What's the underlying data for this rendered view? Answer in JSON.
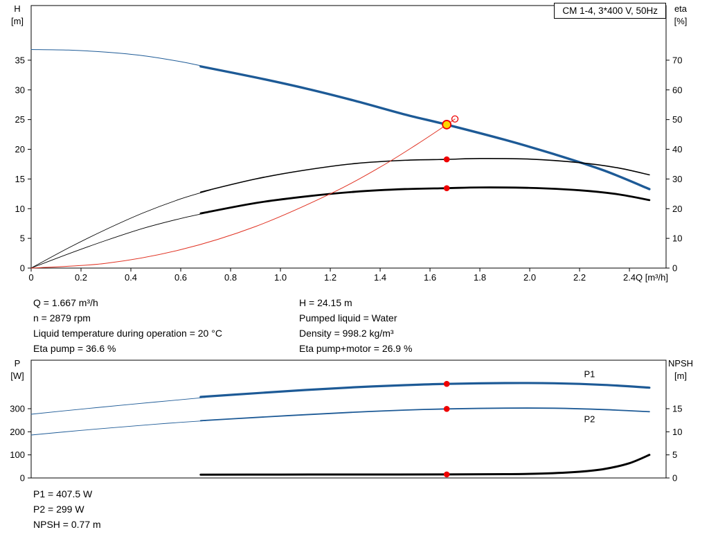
{
  "title_box": {
    "label": "CM 1-4, 3*400 V, 50Hz"
  },
  "info_top": {
    "left": [
      "Q = 1.667 m³/h",
      "n = 2879 rpm",
      "Liquid temperature during operation = 20 °C",
      "Eta pump = 36.6 %"
    ],
    "right": [
      "H = 24.15 m",
      "Pumped liquid = Water",
      "Density = 998.2 kg/m³",
      "Eta pump+motor = 26.9 %"
    ]
  },
  "info_bottom": [
    "P1 = 407.5 W",
    "P2 = 299 W",
    "NPSH = 0.77 m"
  ],
  "colors": {
    "curve_blue": "#1d5a96",
    "curve_black": "#000000",
    "marker_red": "#ee0000",
    "duty_yellow": "#ffd800",
    "frame": "#000000"
  },
  "chart_data": [
    {
      "type": "line",
      "name": "pump-performance-chart",
      "title": "CM 1-4, 3*400 V, 50Hz",
      "grid": false,
      "x_axis": {
        "label": "Q [m³/h]",
        "min": 0,
        "max": 2.547,
        "show_labels": true,
        "ticks": [
          0,
          0.2,
          0.4,
          0.6,
          0.8,
          1.0,
          1.2,
          1.4,
          1.6,
          1.8,
          2.0,
          2.2,
          2.4
        ],
        "tick_labels": [
          "0",
          "0.2",
          "0.4",
          "0.6",
          "0.8",
          "1.0",
          "1.2",
          "1.4",
          "1.6",
          "1.8",
          "2.0",
          "2.2",
          "2.4"
        ]
      },
      "y_left": {
        "label": [
          "H",
          "[m]"
        ],
        "min": 0,
        "max": 44.2,
        "ticks": [
          0,
          5,
          10,
          15,
          20,
          25,
          30,
          35
        ],
        "tick_labels": [
          "0",
          "5",
          "10",
          "15",
          "20",
          "25",
          "30",
          "35"
        ]
      },
      "y_right": {
        "label": [
          "eta",
          "[%]"
        ],
        "min": 0,
        "max": 88.4,
        "ticks": [
          0,
          10,
          20,
          30,
          40,
          50,
          60,
          70
        ],
        "tick_labels": [
          "0",
          "10",
          "20",
          "30",
          "40",
          "50",
          "60",
          "70"
        ]
      },
      "series": [
        {
          "name": "head-curve-lead",
          "axis": "left",
          "color": "#1d5a96",
          "width": 1,
          "points": [
            [
              0,
              36.8
            ],
            [
              0.15,
              36.7
            ],
            [
              0.3,
              36.35
            ],
            [
              0.45,
              35.75
            ],
            [
              0.6,
              34.75
            ],
            [
              0.72,
              33.7
            ]
          ]
        },
        {
          "name": "head-curve",
          "axis": "left",
          "color": "#1d5a96",
          "width": 3.4,
          "points": [
            [
              0.68,
              33.95
            ],
            [
              0.9,
              32.1
            ],
            [
              1.1,
              30.25
            ],
            [
              1.3,
              28.15
            ],
            [
              1.5,
              25.85
            ],
            [
              1.667,
              24.15
            ],
            [
              1.9,
              21.6
            ],
            [
              2.1,
              19.15
            ],
            [
              2.3,
              16.4
            ],
            [
              2.48,
              13.3
            ]
          ]
        },
        {
          "name": "eta-pump-curve-lead",
          "axis": "right",
          "color": "#000000",
          "width": 0.9,
          "points": [
            [
              0,
              0
            ],
            [
              0.15,
              6.8
            ],
            [
              0.3,
              13.0
            ],
            [
              0.45,
              18.6
            ],
            [
              0.6,
              23.3
            ],
            [
              0.72,
              26.3
            ]
          ]
        },
        {
          "name": "eta-pump-curve",
          "axis": "right",
          "color": "#000000",
          "width": 1.6,
          "points": [
            [
              0.68,
              25.6
            ],
            [
              0.9,
              30.0
            ],
            [
              1.1,
              33.0
            ],
            [
              1.3,
              35.2
            ],
            [
              1.5,
              36.3
            ],
            [
              1.667,
              36.6
            ],
            [
              1.8,
              36.9
            ],
            [
              2.0,
              36.7
            ],
            [
              2.2,
              35.5
            ],
            [
              2.35,
              33.8
            ],
            [
              2.48,
              31.4
            ]
          ]
        },
        {
          "name": "eta-pump-motor-curve-lead",
          "axis": "right",
          "color": "#000000",
          "width": 0.9,
          "points": [
            [
              0,
              0
            ],
            [
              0.15,
              4.8
            ],
            [
              0.3,
              9.3
            ],
            [
              0.45,
              13.4
            ],
            [
              0.6,
              16.7
            ],
            [
              0.72,
              18.9
            ]
          ]
        },
        {
          "name": "eta-pump-motor-curve",
          "axis": "right",
          "color": "#000000",
          "width": 2.8,
          "points": [
            [
              0.68,
              18.4
            ],
            [
              0.9,
              21.9
            ],
            [
              1.1,
              24.1
            ],
            [
              1.3,
              25.7
            ],
            [
              1.5,
              26.6
            ],
            [
              1.667,
              26.9
            ],
            [
              1.8,
              27.15
            ],
            [
              2.0,
              27.0
            ],
            [
              2.2,
              26.2
            ],
            [
              2.35,
              24.9
            ],
            [
              2.48,
              22.9
            ]
          ]
        },
        {
          "name": "system-curve",
          "axis": "left",
          "color": "#e03020",
          "width": 1,
          "points": [
            [
              0,
              0
            ],
            [
              0.3,
              0.8
            ],
            [
              0.6,
              3.1
            ],
            [
              0.9,
              7.0
            ],
            [
              1.2,
              12.5
            ],
            [
              1.4,
              17.0
            ],
            [
              1.55,
              20.9
            ],
            [
              1.667,
              24.15
            ],
            [
              1.7,
              25.1
            ]
          ]
        }
      ],
      "markers": [
        {
          "name": "system-curve-end-marker",
          "q": 1.7,
          "v": 25.1,
          "axis": "left",
          "r": 4.5,
          "fill": "none",
          "stroke": "#ee0000",
          "sw": 1.3,
          "interactable": false
        },
        {
          "name": "duty-point-marker",
          "q": 1.667,
          "v": 24.15,
          "axis": "left",
          "r": 6,
          "fill": "#ffd800",
          "stroke": "#ee0000",
          "sw": 1.8,
          "interactable": true
        },
        {
          "name": "eta-pump-point-marker",
          "q": 1.667,
          "v": 36.6,
          "axis": "right",
          "r": 4.3,
          "fill": "#ee0000",
          "interactable": false
        },
        {
          "name": "eta-pump-motor-point-marker",
          "q": 1.667,
          "v": 26.9,
          "axis": "right",
          "r": 4.3,
          "fill": "#ee0000",
          "interactable": false
        }
      ],
      "annotations": []
    },
    {
      "type": "line",
      "name": "power-npsh-chart",
      "title": "",
      "grid": false,
      "x_axis": {
        "label": "",
        "min": 0,
        "max": 2.547,
        "show_labels": false,
        "ticks": [],
        "tick_labels": []
      },
      "y_left": {
        "label": [
          "P",
          "[W]"
        ],
        "min": 0,
        "max": 510,
        "ticks": [
          0,
          100,
          200,
          300
        ],
        "tick_labels": [
          "0",
          "100",
          "200",
          "300"
        ]
      },
      "y_right": {
        "label": [
          "NPSH",
          "[m]"
        ],
        "min": 0,
        "max": 25.5,
        "ticks": [
          0,
          5,
          10,
          15
        ],
        "tick_labels": [
          "0",
          "5",
          "10",
          "15"
        ]
      },
      "series": [
        {
          "name": "p1-curve-lead",
          "axis": "left",
          "color": "#1d5a96",
          "width": 0.9,
          "points": [
            [
              0,
              276
            ],
            [
              0.2,
              298
            ],
            [
              0.4,
              319
            ],
            [
              0.55,
              334
            ],
            [
              0.7,
              349
            ]
          ]
        },
        {
          "name": "p1-curve",
          "axis": "left",
          "color": "#1d5a96",
          "width": 3.2,
          "points": [
            [
              0.68,
              351
            ],
            [
              0.9,
              367
            ],
            [
              1.1,
              381
            ],
            [
              1.3,
              393
            ],
            [
              1.5,
              402
            ],
            [
              1.667,
              407.5
            ],
            [
              1.9,
              411
            ],
            [
              2.1,
              410
            ],
            [
              2.3,
              403
            ],
            [
              2.48,
              391
            ]
          ]
        },
        {
          "name": "p2-curve-lead",
          "axis": "left",
          "color": "#1d5a96",
          "width": 0.9,
          "points": [
            [
              0,
              186
            ],
            [
              0.2,
              206
            ],
            [
              0.4,
              224
            ],
            [
              0.55,
              237
            ],
            [
              0.7,
              248
            ]
          ]
        },
        {
          "name": "p2-curve",
          "axis": "left",
          "color": "#1d5a96",
          "width": 1.8,
          "points": [
            [
              0.68,
              248
            ],
            [
              0.9,
              262
            ],
            [
              1.1,
              274
            ],
            [
              1.3,
              285
            ],
            [
              1.5,
              294
            ],
            [
              1.667,
              299
            ],
            [
              1.9,
              302.5
            ],
            [
              2.1,
              302
            ],
            [
              2.3,
              296
            ],
            [
              2.48,
              287
            ]
          ]
        },
        {
          "name": "npsh-curve",
          "axis": "right",
          "color": "#000000",
          "width": 3,
          "points": [
            [
              0.68,
              0.72
            ],
            [
              1.0,
              0.74
            ],
            [
              1.3,
              0.75
            ],
            [
              1.667,
              0.77
            ],
            [
              1.9,
              0.82
            ],
            [
              2.05,
              0.95
            ],
            [
              2.2,
              1.35
            ],
            [
              2.3,
              1.95
            ],
            [
              2.4,
              3.2
            ],
            [
              2.48,
              5.0
            ]
          ]
        }
      ],
      "markers": [
        {
          "name": "p1-point-marker",
          "q": 1.667,
          "v": 407.5,
          "axis": "left",
          "r": 4.3,
          "fill": "#ee0000",
          "interactable": false
        },
        {
          "name": "p2-point-marker",
          "q": 1.667,
          "v": 299,
          "axis": "left",
          "r": 4.3,
          "fill": "#ee0000",
          "interactable": false
        },
        {
          "name": "npsh-point-marker",
          "q": 1.667,
          "v": 0.77,
          "axis": "right",
          "r": 4.3,
          "fill": "#ee0000",
          "interactable": false
        }
      ],
      "annotations": [
        {
          "name": "p1-curve-label",
          "text": "P1",
          "q": 2.24,
          "v": 437,
          "axis": "left",
          "color": "#1d5a96"
        },
        {
          "name": "p2-curve-label",
          "text": "P2",
          "q": 2.24,
          "v": 242,
          "axis": "left",
          "color": "#1d5a96"
        }
      ]
    }
  ]
}
